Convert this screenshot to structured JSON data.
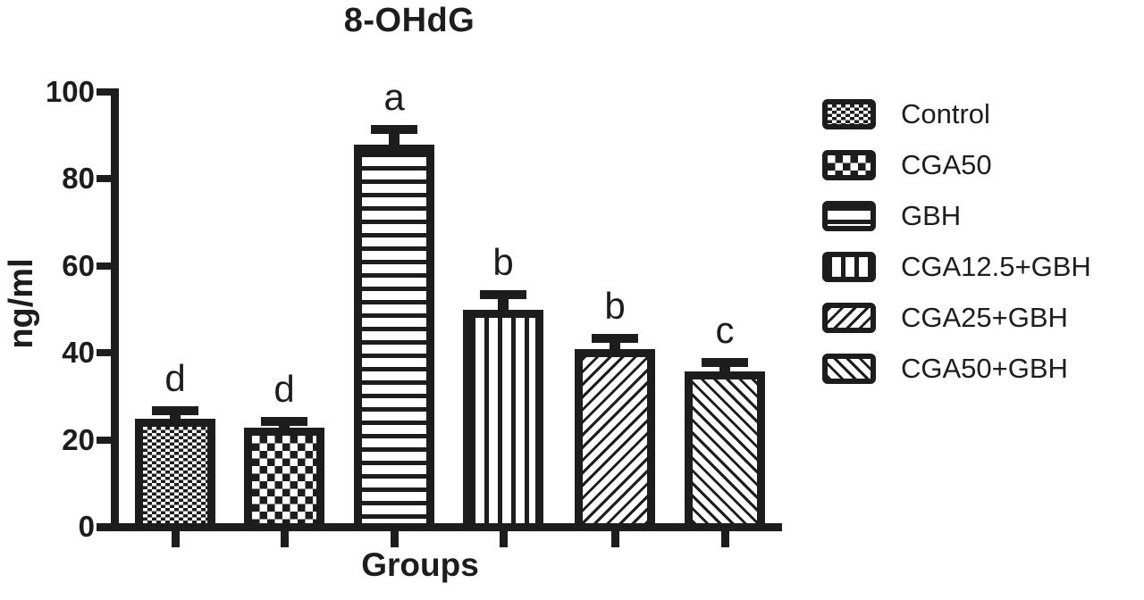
{
  "chart_data": {
    "type": "bar",
    "title": "8-OHdG",
    "xlabel": "Groups",
    "ylabel": "ng/ml",
    "ylim": [
      0,
      100
    ],
    "yticks": [
      0,
      20,
      40,
      60,
      80,
      100
    ],
    "grid": false,
    "legend_position": "right",
    "ink_color": "#1d1d1d",
    "background_color": "#ffffff",
    "categories": [
      "Control",
      "CGA50",
      "GBH",
      "CGA12.5+GBH",
      "CGA25+GBH",
      "CGA50+GBH"
    ],
    "values": [
      24,
      22,
      87,
      49,
      40,
      35
    ],
    "errors_upper": [
      3,
      2.5,
      4.5,
      4.5,
      3.5,
      3
    ],
    "sig_letters": [
      "d",
      "d",
      "a",
      "b",
      "b",
      "c"
    ],
    "patterns": [
      "fine-checker",
      "coarse-checker",
      "hlines",
      "vlines",
      "diag-forward",
      "diag-back"
    ],
    "error_bar_style": "upper-cap"
  }
}
